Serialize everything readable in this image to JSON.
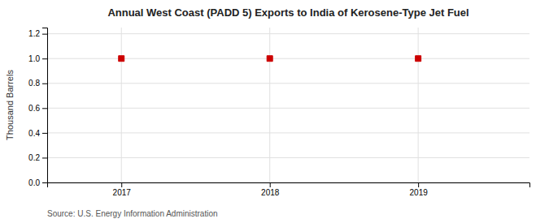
{
  "chart_data": {
    "type": "scatter",
    "title": "Annual West Coast (PADD 5) Exports to India of Kerosene-Type Jet Fuel",
    "ylabel": "Thousand Barrels",
    "annotations": [
      "Source: U.S. Energy Information Administration"
    ],
    "x": [
      2017,
      2018,
      2019
    ],
    "y": [
      1.0,
      1.0,
      1.0
    ],
    "xlim": [
      2016.5,
      2019.75
    ],
    "ylim": [
      0.0,
      1.25
    ],
    "xticks": [
      2017,
      2018,
      2019
    ],
    "yticks": [
      {
        "value": 0.0,
        "label": "0.0"
      },
      {
        "value": 0.2,
        "label": "0.2"
      },
      {
        "value": 0.4,
        "label": "0.4"
      },
      {
        "value": 0.6,
        "label": "0.6"
      },
      {
        "value": 0.8,
        "label": "0.8"
      },
      {
        "value": 1.0,
        "label": "1.0"
      },
      {
        "value": 1.2,
        "label": "1.2"
      }
    ],
    "color": "#cc0000",
    "marker": "square",
    "grid": true
  }
}
